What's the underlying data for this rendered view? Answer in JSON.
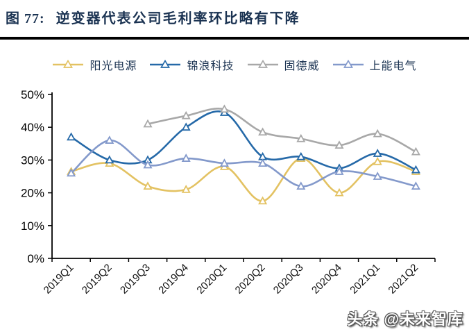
{
  "header": {
    "figure_label": "图 77:",
    "title": "逆变器代表公司毛利率环比略有下降"
  },
  "watermark": {
    "text": "头条 @未来智库"
  },
  "chart_data": {
    "type": "line",
    "title": "逆变器代表公司毛利率环比略有下降",
    "categories": [
      "2019Q1",
      "2019Q2",
      "2019Q3",
      "2019Q4",
      "2020Q1",
      "2020Q2",
      "2020Q3",
      "2020Q4",
      "2021Q1",
      "2021Q2"
    ],
    "series": [
      {
        "name": "阳光电源",
        "color": "#E3C262",
        "values": [
          26.5,
          29,
          22,
          21,
          28,
          17.5,
          30.5,
          20,
          29.5,
          26.5
        ]
      },
      {
        "name": "锦浪科技",
        "color": "#2569A8",
        "values": [
          37,
          30,
          30,
          40,
          44.5,
          31,
          31,
          27.5,
          32,
          27
        ]
      },
      {
        "name": "固德威",
        "color": "#A8A8A8",
        "values": [
          null,
          null,
          41,
          43.5,
          45.5,
          38.5,
          36.5,
          34.5,
          38,
          32.5
        ]
      },
      {
        "name": "上能电气",
        "color": "#8399CB",
        "values": [
          26,
          36,
          28.5,
          30.5,
          29,
          29,
          22,
          26.5,
          25,
          22
        ]
      }
    ],
    "ylabel": "",
    "xlabel": "",
    "ylim": [
      0,
      50
    ],
    "yticks": [
      0,
      10,
      20,
      30,
      40,
      50
    ],
    "ytick_labels": [
      "0%",
      "10%",
      "20%",
      "30%",
      "40%",
      "50%"
    ],
    "grid": false,
    "legend_position": "top",
    "marker": "open-triangle",
    "axis_color": "#000000"
  }
}
